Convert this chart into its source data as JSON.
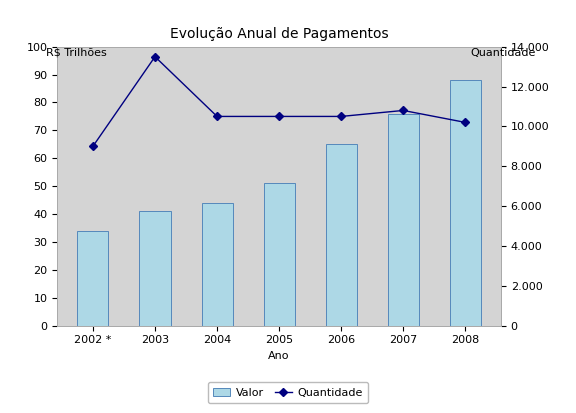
{
  "title": "Evolução Anual de Pagamentos",
  "xlabel": "Ano",
  "ylabel_left": "R$ Trilhões",
  "ylabel_right": "Quantidade",
  "categories": [
    "2002 *",
    "2003",
    "2004",
    "2005",
    "2006",
    "2007",
    "2008"
  ],
  "bar_values": [
    34,
    41,
    44,
    51,
    65,
    76,
    88
  ],
  "line_values": [
    9000,
    13500,
    10500,
    10500,
    10500,
    10800,
    10200
  ],
  "bar_color": "#add8e6",
  "bar_edge_color": "#5588bb",
  "line_color": "#000080",
  "line_marker": "D",
  "line_marker_size": 4,
  "ylim_left": [
    0,
    100
  ],
  "ylim_right": [
    0,
    14000
  ],
  "yticks_left": [
    0,
    10,
    20,
    30,
    40,
    50,
    60,
    70,
    80,
    90,
    100
  ],
  "yticks_right": [
    0,
    2000,
    4000,
    6000,
    8000,
    10000,
    12000,
    14000
  ],
  "ytick_labels_right": [
    "0",
    "2.000",
    "4.000",
    "6.000",
    "8.000",
    "10.000",
    "12.000",
    "14.000"
  ],
  "figure_bg_color": "#ffffff",
  "plot_bg_color": "#d4d4d4",
  "title_fontsize": 10,
  "axis_label_fontsize": 8,
  "tick_fontsize": 8,
  "legend_labels": [
    "Valor",
    "Quantidade"
  ]
}
